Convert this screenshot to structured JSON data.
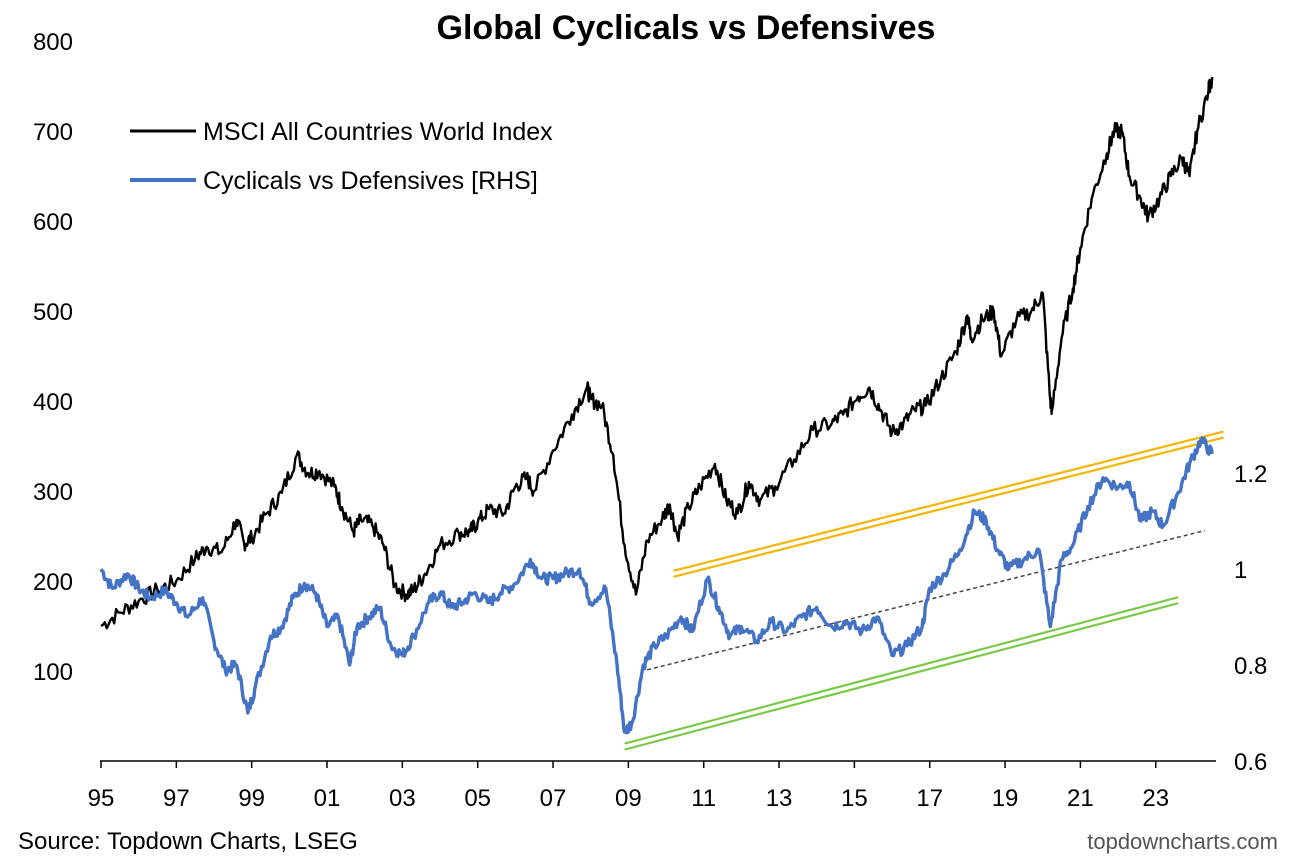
{
  "chart_data": {
    "type": "line",
    "title": "Global Cyclicals vs Defensives",
    "source": "Source: Topdown Charts, LSEG",
    "watermark": "topdowncharts.com",
    "x_ticks": [
      "95",
      "97",
      "99",
      "01",
      "03",
      "05",
      "07",
      "09",
      "11",
      "13",
      "15",
      "17",
      "19",
      "21",
      "23"
    ],
    "x_tick_years": [
      1995,
      1997,
      1999,
      2001,
      2003,
      2005,
      2007,
      2009,
      2011,
      2013,
      2015,
      2017,
      2019,
      2021,
      2023
    ],
    "xlim": [
      1995,
      2024.6
    ],
    "left_axis": {
      "ylim": [
        0,
        800
      ],
      "ticks": [
        100,
        200,
        300,
        400,
        500,
        600,
        700,
        800
      ]
    },
    "right_axis": {
      "ylim": [
        0.6,
        2.1
      ],
      "ticks": [
        "0.6",
        "0.8",
        "1",
        "1.2"
      ],
      "tick_values": [
        0.6,
        0.8,
        1.0,
        1.2
      ]
    },
    "legend": {
      "position": "top-left",
      "items": [
        {
          "label": "MSCI All Countries World Index",
          "color": "#000000"
        },
        {
          "label": "Cyclicals vs Defensives [RHS]",
          "color": "#4472C4"
        }
      ]
    },
    "series": [
      {
        "name": "MSCI All Countries World Index",
        "axis": "left",
        "color": "#000000",
        "points": [
          [
            1995.0,
            150
          ],
          [
            1995.5,
            165
          ],
          [
            1996.0,
            178
          ],
          [
            1996.5,
            190
          ],
          [
            1997.0,
            200
          ],
          [
            1997.5,
            225
          ],
          [
            1997.8,
            238
          ],
          [
            1998.2,
            232
          ],
          [
            1998.6,
            268
          ],
          [
            1998.8,
            242
          ],
          [
            1999.0,
            248
          ],
          [
            1999.4,
            275
          ],
          [
            1999.8,
            298
          ],
          [
            2000.2,
            340
          ],
          [
            2000.5,
            320
          ],
          [
            2000.8,
            322
          ],
          [
            2001.2,
            305
          ],
          [
            2001.4,
            282
          ],
          [
            2001.7,
            255
          ],
          [
            2001.9,
            268
          ],
          [
            2002.2,
            262
          ],
          [
            2002.5,
            240
          ],
          [
            2002.8,
            195
          ],
          [
            2003.1,
            185
          ],
          [
            2003.3,
            190
          ],
          [
            2003.6,
            208
          ],
          [
            2004.0,
            240
          ],
          [
            2004.5,
            253
          ],
          [
            2004.8,
            255
          ],
          [
            2005.0,
            265
          ],
          [
            2005.3,
            280
          ],
          [
            2005.7,
            275
          ],
          [
            2006.0,
            305
          ],
          [
            2006.3,
            315
          ],
          [
            2006.5,
            300
          ],
          [
            2007.0,
            345
          ],
          [
            2007.5,
            385
          ],
          [
            2007.9,
            415
          ],
          [
            2008.0,
            402
          ],
          [
            2008.3,
            395
          ],
          [
            2008.6,
            340
          ],
          [
            2008.9,
            240
          ],
          [
            2009.2,
            185
          ],
          [
            2009.5,
            245
          ],
          [
            2009.9,
            270
          ],
          [
            2010.1,
            285
          ],
          [
            2010.3,
            250
          ],
          [
            2010.6,
            282
          ],
          [
            2010.9,
            305
          ],
          [
            2011.3,
            330
          ],
          [
            2011.6,
            290
          ],
          [
            2011.9,
            275
          ],
          [
            2012.2,
            310
          ],
          [
            2012.5,
            290
          ],
          [
            2012.9,
            305
          ],
          [
            2013.4,
            335
          ],
          [
            2013.9,
            368
          ],
          [
            2014.4,
            375
          ],
          [
            2014.7,
            385
          ],
          [
            2015.1,
            405
          ],
          [
            2015.4,
            415
          ],
          [
            2015.7,
            390
          ],
          [
            2016.0,
            365
          ],
          [
            2016.3,
            375
          ],
          [
            2016.6,
            390
          ],
          [
            2016.9,
            395
          ],
          [
            2017.3,
            425
          ],
          [
            2017.7,
            455
          ],
          [
            2018.0,
            495
          ],
          [
            2018.1,
            470
          ],
          [
            2018.4,
            490
          ],
          [
            2018.7,
            500
          ],
          [
            2018.9,
            450
          ],
          [
            2019.3,
            490
          ],
          [
            2019.7,
            500
          ],
          [
            2020.0,
            520
          ],
          [
            2020.2,
            400
          ],
          [
            2020.25,
            390
          ],
          [
            2020.5,
            470
          ],
          [
            2020.8,
            525
          ],
          [
            2021.0,
            570
          ],
          [
            2021.3,
            625
          ],
          [
            2021.7,
            675
          ],
          [
            2021.9,
            700
          ],
          [
            2022.1,
            700
          ],
          [
            2022.3,
            650
          ],
          [
            2022.6,
            625
          ],
          [
            2022.8,
            605
          ],
          [
            2023.1,
            625
          ],
          [
            2023.4,
            650
          ],
          [
            2023.7,
            670
          ],
          [
            2023.9,
            650
          ],
          [
            2024.1,
            700
          ],
          [
            2024.4,
            745
          ],
          [
            2024.5,
            760
          ]
        ]
      },
      {
        "name": "Cyclicals vs Defensives [RHS]",
        "axis": "right",
        "color": "#4472C4",
        "points": [
          [
            1995.0,
            1.0
          ],
          [
            1995.3,
            0.96
          ],
          [
            1995.7,
            0.99
          ],
          [
            1996.0,
            0.96
          ],
          [
            1996.3,
            0.94
          ],
          [
            1996.7,
            0.955
          ],
          [
            1997.0,
            0.93
          ],
          [
            1997.3,
            0.9
          ],
          [
            1997.7,
            0.94
          ],
          [
            1998.0,
            0.85
          ],
          [
            1998.3,
            0.79
          ],
          [
            1998.6,
            0.8
          ],
          [
            1998.9,
            0.7
          ],
          [
            1999.1,
            0.755
          ],
          [
            1999.5,
            0.86
          ],
          [
            1999.8,
            0.88
          ],
          [
            2000.1,
            0.94
          ],
          [
            2000.4,
            0.97
          ],
          [
            2000.7,
            0.95
          ],
          [
            2001.0,
            0.88
          ],
          [
            2001.3,
            0.9
          ],
          [
            2001.6,
            0.8
          ],
          [
            2001.8,
            0.88
          ],
          [
            2002.1,
            0.9
          ],
          [
            2002.4,
            0.92
          ],
          [
            2002.7,
            0.84
          ],
          [
            2003.0,
            0.82
          ],
          [
            2003.3,
            0.86
          ],
          [
            2003.7,
            0.93
          ],
          [
            2004.0,
            0.95
          ],
          [
            2004.3,
            0.92
          ],
          [
            2004.6,
            0.93
          ],
          [
            2004.9,
            0.95
          ],
          [
            2005.3,
            0.93
          ],
          [
            2005.6,
            0.95
          ],
          [
            2006.0,
            0.97
          ],
          [
            2006.4,
            1.02
          ],
          [
            2006.7,
            0.98
          ],
          [
            2007.0,
            0.98
          ],
          [
            2007.3,
            0.99
          ],
          [
            2007.7,
            1.0
          ],
          [
            2008.0,
            0.93
          ],
          [
            2008.4,
            0.96
          ],
          [
            2008.7,
            0.8
          ],
          [
            2008.9,
            0.66
          ],
          [
            2009.1,
            0.68
          ],
          [
            2009.4,
            0.8
          ],
          [
            2009.7,
            0.84
          ],
          [
            2010.0,
            0.86
          ],
          [
            2010.4,
            0.9
          ],
          [
            2010.7,
            0.87
          ],
          [
            2011.1,
            0.98
          ],
          [
            2011.4,
            0.92
          ],
          [
            2011.7,
            0.86
          ],
          [
            2012.0,
            0.88
          ],
          [
            2012.4,
            0.85
          ],
          [
            2012.8,
            0.89
          ],
          [
            2013.2,
            0.87
          ],
          [
            2013.6,
            0.9
          ],
          [
            2014.0,
            0.92
          ],
          [
            2014.4,
            0.88
          ],
          [
            2014.8,
            0.89
          ],
          [
            2015.2,
            0.87
          ],
          [
            2015.6,
            0.9
          ],
          [
            2016.0,
            0.82
          ],
          [
            2016.4,
            0.84
          ],
          [
            2016.8,
            0.88
          ],
          [
            2017.0,
            0.96
          ],
          [
            2017.4,
            0.99
          ],
          [
            2017.8,
            1.04
          ],
          [
            2018.2,
            1.12
          ],
          [
            2018.5,
            1.1
          ],
          [
            2018.8,
            1.04
          ],
          [
            2019.1,
            1.0
          ],
          [
            2019.5,
            1.02
          ],
          [
            2019.9,
            1.04
          ],
          [
            2020.2,
            0.88
          ],
          [
            2020.5,
            1.02
          ],
          [
            2020.8,
            1.05
          ],
          [
            2021.2,
            1.13
          ],
          [
            2021.6,
            1.19
          ],
          [
            2022.0,
            1.17
          ],
          [
            2022.3,
            1.18
          ],
          [
            2022.6,
            1.1
          ],
          [
            2022.9,
            1.12
          ],
          [
            2023.2,
            1.09
          ],
          [
            2023.6,
            1.16
          ],
          [
            2023.9,
            1.22
          ],
          [
            2024.2,
            1.27
          ],
          [
            2024.5,
            1.24
          ]
        ]
      }
    ],
    "trend_lines": [
      {
        "name": "upper channel",
        "axis": "right",
        "color": "#F5B400",
        "double": true,
        "from": [
          2010.2,
          0.99
        ],
        "to": [
          2024.8,
          1.28
        ]
      },
      {
        "name": "lower channel",
        "axis": "right",
        "color": "#7CC94A",
        "double": true,
        "from": [
          2008.9,
          0.63
        ],
        "to": [
          2023.6,
          0.935
        ]
      },
      {
        "name": "mid trend",
        "axis": "right",
        "color": "#444444",
        "dashed": true,
        "from": [
          2009.5,
          0.79
        ],
        "to": [
          2024.3,
          1.08
        ]
      }
    ]
  }
}
